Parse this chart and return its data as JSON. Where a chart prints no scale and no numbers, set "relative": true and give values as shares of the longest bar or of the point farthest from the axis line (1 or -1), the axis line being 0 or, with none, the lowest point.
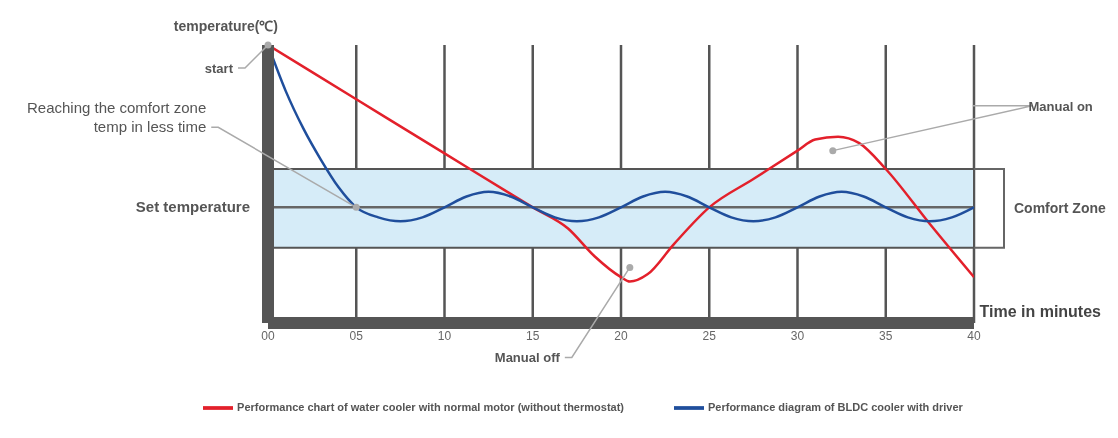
{
  "chart_data": {
    "type": "line",
    "relative": true,
    "ylabel": "temperature(℃)",
    "xlabel": "Time in minutes",
    "xlim": [
      0,
      40
    ],
    "xticks": [
      {
        "value": 0,
        "label": "00"
      },
      {
        "value": 5,
        "label": "05"
      },
      10,
      15,
      20,
      25,
      30,
      35,
      40
    ],
    "grid": "x",
    "legend": "bottom",
    "marker": "none",
    "line_style": "solid",
    "series": [
      {
        "name": "Performance chart of water cooler with normal motor (without thermostat)",
        "color": "#e3202b",
        "x": [
          0,
          5,
          10,
          15,
          17,
          18.5,
          20,
          20.5,
          21.5,
          23,
          25,
          27.5,
          30,
          31,
          32.3,
          33.5,
          35,
          37.5,
          40
        ],
        "values": [
          1.0,
          0.805,
          0.61,
          0.416,
          0.34,
          0.24,
          0.165,
          0.149,
          0.175,
          0.284,
          0.416,
          0.518,
          0.62,
          0.66,
          0.67,
          0.647,
          0.554,
          0.356,
          0.165
        ]
      },
      {
        "name": "Performance diagram of BLDC cooler with driver",
        "color": "#1f4e9c",
        "x": [
          0,
          1,
          2,
          3,
          4,
          5,
          6.25,
          7.5,
          8.75,
          10,
          11.25,
          12.5,
          13.75,
          15,
          16.25,
          17.5,
          18.75,
          20,
          21.25,
          22.5,
          23.75,
          25,
          26.25,
          27.5,
          28.75,
          30,
          31.25,
          32.5,
          33.75,
          35,
          36.25,
          37.5,
          38.75,
          40
        ],
        "values": [
          1.0,
          0.835,
          0.7,
          0.587,
          0.488,
          0.416,
          0.38,
          0.366,
          0.38,
          0.416,
          0.455,
          0.472,
          0.455,
          0.416,
          0.38,
          0.366,
          0.38,
          0.416,
          0.455,
          0.472,
          0.455,
          0.416,
          0.38,
          0.366,
          0.38,
          0.416,
          0.455,
          0.472,
          0.455,
          0.416,
          0.38,
          0.366,
          0.38,
          0.416
        ]
      }
    ],
    "ref_lines": [
      {
        "axis": "y",
        "value": 0.416,
        "label": "Set temperature",
        "color": "#666666"
      }
    ],
    "bands": [
      {
        "axis": "y",
        "from": 0.271,
        "to": 0.554,
        "label": "Comfort Zone",
        "color": "#d6ecf8"
      }
    ],
    "annotations": [
      {
        "text": "start",
        "x": 0,
        "y": 1.0
      },
      {
        "text": "Reaching the comfort zone temp in less time",
        "x": 5,
        "y": 0.416
      },
      {
        "text": "Manual off",
        "x": 20.5,
        "y": 0.2
      },
      {
        "text": "Manual on",
        "x": 32,
        "y": 0.62
      }
    ]
  }
}
